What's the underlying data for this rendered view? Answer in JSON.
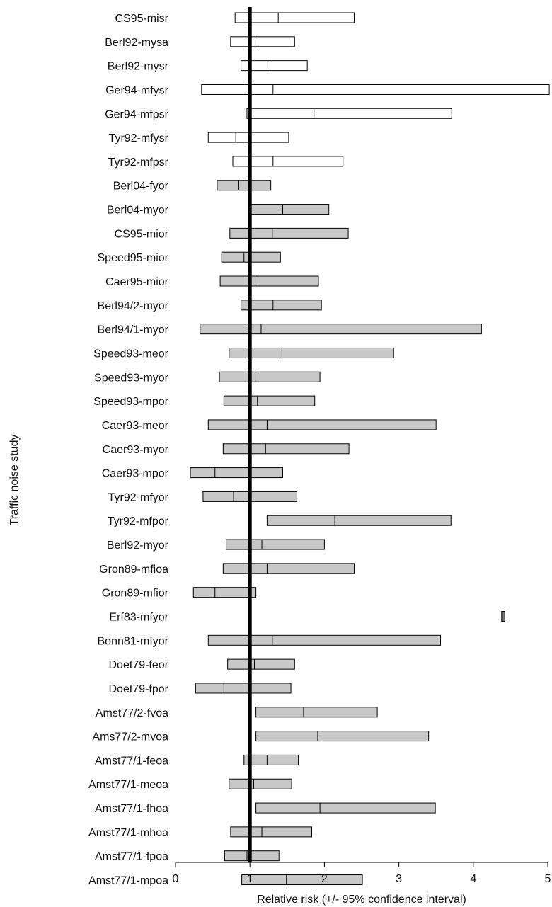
{
  "chart_data": {
    "type": "forest",
    "xlabel": "Relative risk (+/- 95% confidence interval)",
    "ylabel": "Traffic noise study",
    "xlim": [
      0,
      5
    ],
    "xticks": [
      0,
      1,
      2,
      3,
      4,
      5
    ],
    "reference_line": 1,
    "legend": "none",
    "grid": false,
    "colors": {
      "filled": "#c8c8c8",
      "open": "#ffffff",
      "outline": "#000000",
      "reference": "#000000"
    },
    "studies": [
      {
        "label": "CS95-misr",
        "lower": 0.8,
        "estimate": 1.38,
        "upper": 2.4,
        "fill": "open"
      },
      {
        "label": "Berl92-mysa",
        "lower": 0.74,
        "estimate": 1.07,
        "upper": 1.6,
        "fill": "open"
      },
      {
        "label": "Berl92-mysr",
        "lower": 0.88,
        "estimate": 1.24,
        "upper": 1.77,
        "fill": "open"
      },
      {
        "label": "Ger94-mfysr",
        "lower": 0.35,
        "estimate": 1.31,
        "upper": 5.02,
        "fill": "open"
      },
      {
        "label": "Ger94-mfpsr",
        "lower": 0.96,
        "estimate": 1.86,
        "upper": 3.71,
        "fill": "open"
      },
      {
        "label": "Tyr92-mfysr",
        "lower": 0.44,
        "estimate": 0.81,
        "upper": 1.52,
        "fill": "open"
      },
      {
        "label": "Tyr92-mfpsr",
        "lower": 0.77,
        "estimate": 1.31,
        "upper": 2.25,
        "fill": "open"
      },
      {
        "label": "Berl04-fyor",
        "lower": 0.56,
        "estimate": 0.85,
        "upper": 1.28,
        "fill": "filled"
      },
      {
        "label": "Berl04-myor",
        "lower": 1.01,
        "estimate": 1.44,
        "upper": 2.06,
        "fill": "filled"
      },
      {
        "label": "CS95-mior",
        "lower": 0.73,
        "estimate": 1.3,
        "upper": 2.32,
        "fill": "filled"
      },
      {
        "label": "Speed95-mior",
        "lower": 0.62,
        "estimate": 0.92,
        "upper": 1.41,
        "fill": "filled"
      },
      {
        "label": "Caer95-mior",
        "lower": 0.6,
        "estimate": 1.07,
        "upper": 1.92,
        "fill": "filled"
      },
      {
        "label": "Berl94/2-myor",
        "lower": 0.88,
        "estimate": 1.31,
        "upper": 1.96,
        "fill": "filled"
      },
      {
        "label": "Berl94/1-myor",
        "lower": 0.33,
        "estimate": 1.15,
        "upper": 4.11,
        "fill": "filled"
      },
      {
        "label": "Speed93-meor",
        "lower": 0.72,
        "estimate": 1.43,
        "upper": 2.93,
        "fill": "filled"
      },
      {
        "label": "Speed93-myor",
        "lower": 0.59,
        "estimate": 1.07,
        "upper": 1.94,
        "fill": "filled"
      },
      {
        "label": "Speed93-mpor",
        "lower": 0.65,
        "estimate": 1.1,
        "upper": 1.87,
        "fill": "filled"
      },
      {
        "label": "Caer93-meor",
        "lower": 0.44,
        "estimate": 1.23,
        "upper": 3.5,
        "fill": "filled"
      },
      {
        "label": "Caer93-myor",
        "lower": 0.64,
        "estimate": 1.21,
        "upper": 2.33,
        "fill": "filled"
      },
      {
        "label": "Caer93-mpor",
        "lower": 0.2,
        "estimate": 0.53,
        "upper": 1.44,
        "fill": "filled"
      },
      {
        "label": "Tyr92-mfyor",
        "lower": 0.37,
        "estimate": 0.78,
        "upper": 1.63,
        "fill": "filled"
      },
      {
        "label": "Tyr92-mfpor",
        "lower": 1.23,
        "estimate": 2.14,
        "upper": 3.7,
        "fill": "filled"
      },
      {
        "label": "Berl92-myor",
        "lower": 0.68,
        "estimate": 1.16,
        "upper": 2.0,
        "fill": "filled"
      },
      {
        "label": "Gron89-mfioa",
        "lower": 0.64,
        "estimate": 1.23,
        "upper": 2.4,
        "fill": "filled"
      },
      {
        "label": "Gron89-mfior",
        "lower": 0.24,
        "estimate": 0.53,
        "upper": 1.08,
        "fill": "filled"
      },
      {
        "label": "Erf83-mfyor",
        "lower": 4.38,
        "estimate": 4.4,
        "upper": 4.42,
        "fill": "filled"
      },
      {
        "label": "Bonn81-mfyor",
        "lower": 0.44,
        "estimate": 1.3,
        "upper": 3.56,
        "fill": "filled"
      },
      {
        "label": "Doet79-feor",
        "lower": 0.7,
        "estimate": 1.06,
        "upper": 1.6,
        "fill": "filled"
      },
      {
        "label": "Doet79-fpor",
        "lower": 0.27,
        "estimate": 0.65,
        "upper": 1.55,
        "fill": "filled"
      },
      {
        "label": "Amst77/2-fvoa",
        "lower": 1.08,
        "estimate": 1.72,
        "upper": 2.71,
        "fill": "filled"
      },
      {
        "label": "Ams77/2-mvoa",
        "lower": 1.08,
        "estimate": 1.91,
        "upper": 3.4,
        "fill": "filled"
      },
      {
        "label": "Amst77/1-feoa",
        "lower": 0.92,
        "estimate": 1.23,
        "upper": 1.65,
        "fill": "filled"
      },
      {
        "label": "Amst77/1-meoa",
        "lower": 0.72,
        "estimate": 1.05,
        "upper": 1.56,
        "fill": "filled"
      },
      {
        "label": "Amst77/1-fhoa",
        "lower": 1.08,
        "estimate": 1.94,
        "upper": 3.49,
        "fill": "filled"
      },
      {
        "label": "Amst77/1-mhoa",
        "lower": 0.74,
        "estimate": 1.16,
        "upper": 1.83,
        "fill": "filled"
      },
      {
        "label": "Amst77/1-fpoa",
        "lower": 0.66,
        "estimate": 0.96,
        "upper": 1.39,
        "fill": "filled"
      },
      {
        "label": "Amst77/1-mpoa",
        "lower": 0.89,
        "estimate": 1.49,
        "upper": 2.51,
        "fill": "filled"
      }
    ]
  }
}
